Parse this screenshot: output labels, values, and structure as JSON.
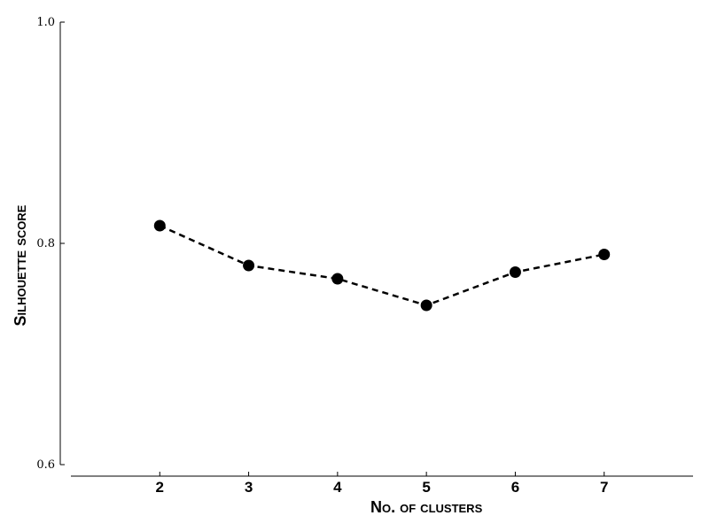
{
  "chart_data": {
    "type": "line",
    "title": "",
    "xlabel": "No. of clusters",
    "ylabel": "Silhouette score",
    "x": [
      2,
      3,
      4,
      5,
      6,
      7
    ],
    "x_tick_labels": [
      "2",
      "3",
      "4",
      "5",
      "6",
      "7"
    ],
    "xlim": [
      1,
      8
    ],
    "ylim": [
      0.6,
      1.0
    ],
    "y_ticks": [
      0.6,
      0.8,
      1.0
    ],
    "y_tick_labels": [
      "0.6",
      "0.8",
      "1.0"
    ],
    "series": [
      {
        "values": [
          0.816,
          0.78,
          0.768,
          0.744,
          0.774,
          0.79
        ],
        "color": "#000000",
        "line_style": "dashed",
        "marker": "circle"
      }
    ],
    "grid": false,
    "legend": "none"
  }
}
